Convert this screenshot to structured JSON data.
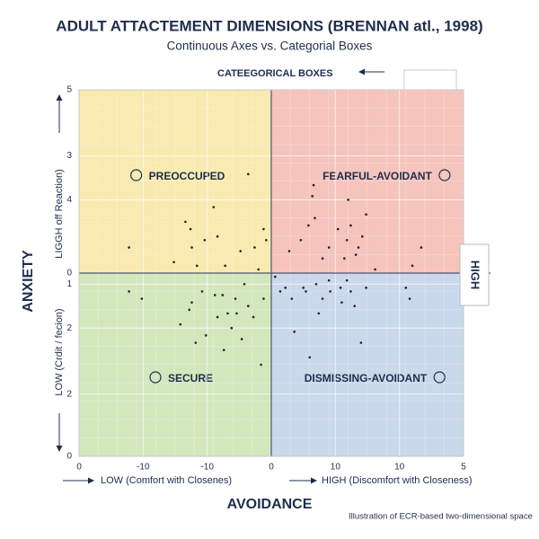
{
  "chart_data": {
    "type": "scatter",
    "title": "ADULT ATTACTEMENT DIMENSIONS (BRENNAN atl., 1998)",
    "subtitle": "Continuous Axes vs. Categorial Boxes",
    "top_label": "CATEEGORICAL BOXES",
    "right_label": "HIGH",
    "y_label": "ANXIETY",
    "y_high_label": "LIGGH off Reaction)",
    "y_low_label": "LOW (Crdit / fecion)",
    "x_label": "AVOIDANCE",
    "x_low_label": "LOW (Comfort with Closenes)",
    "x_high_label": "HIGH (Discomfort with Closeness)",
    "footnote": "Illustration of ECR-based two-dimensional space",
    "quadrants": [
      {
        "label": "PREOCCUPED",
        "color": "#f8eab0"
      },
      {
        "label": "FEARFUL-AVOIDANT",
        "color": "#f5c4bc"
      },
      {
        "label": "SECURE",
        "color": "#d3e7bd"
      },
      {
        "label": "DISMISSING-AVOIDANT",
        "color": "#c9d8ea"
      }
    ],
    "color": "#222222",
    "x": [
      -11.1,
      -7.6,
      -6.7,
      -6.3,
      -6.2,
      -5.8,
      -5.2,
      -4.5,
      -4.2,
      -3.6,
      -2.4,
      -1.8,
      -1.3,
      -1.0,
      -0.6,
      -0.4,
      1.4,
      2.3,
      2.9,
      3.2,
      3.3,
      3.4,
      4.0,
      4.5,
      5.2,
      5.7,
      5.9,
      6.0,
      6.2,
      6.6,
      6.8,
      7.1,
      7.4,
      8.1,
      11.0,
      11.7,
      -11.1,
      -10.1,
      -7.1,
      -6.4,
      -6.2,
      -5.9,
      -5.4,
      -5.1,
      -4.4,
      -4.2,
      -3.8,
      -3.7,
      -3.4,
      -3.1,
      -2.8,
      -2.7,
      -2.3,
      -2.1,
      -1.8,
      -1.4,
      -0.8,
      -0.6,
      0.3,
      0.7,
      1.1,
      1.6,
      1.8,
      2.5,
      2.7,
      3.0,
      3.5,
      3.7,
      4.0,
      4.5,
      4.6,
      5.4,
      5.5,
      5.9,
      6.2,
      6.5,
      7.0,
      7.4,
      10.5,
      10.8
    ],
    "y": [
      0.7,
      0.3,
      1.4,
      1.2,
      0.7,
      0.2,
      0.9,
      1.8,
      1.0,
      0.2,
      0.6,
      2.7,
      0.7,
      0.1,
      1.2,
      0.9,
      0.6,
      0.9,
      1.3,
      2.1,
      2.4,
      1.5,
      0.4,
      0.7,
      1.2,
      0.4,
      0.9,
      2.0,
      1.3,
      0.5,
      0.7,
      1.0,
      1.6,
      0.1,
      0.2,
      0.7,
      -0.5,
      -0.7,
      -1.4,
      -1.0,
      -0.8,
      -1.9,
      -0.5,
      -1.7,
      -0.6,
      -1.2,
      -0.6,
      -2.1,
      -1.1,
      -1.5,
      -0.7,
      -1.1,
      -1.8,
      -0.3,
      -0.9,
      -1.2,
      -2.5,
      -0.7,
      -0.1,
      -0.5,
      -0.4,
      -0.7,
      -1.6,
      -0.4,
      -0.5,
      -2.3,
      -0.3,
      -1.1,
      -0.7,
      -0.2,
      -0.5,
      -0.4,
      -0.8,
      -0.2,
      -0.5,
      -0.9,
      -1.9,
      -0.4,
      -0.4,
      -0.7
    ],
    "xlim": [
      -15,
      15
    ],
    "ylim": [
      -5,
      5
    ],
    "xticks": [
      {
        "value": -15,
        "label": "0"
      },
      -10,
      {
        "value": -5,
        "label": "-10"
      },
      0,
      {
        "value": 5,
        "label": "10"
      },
      10,
      {
        "value": 15,
        "label": "5"
      }
    ],
    "yticks": [
      5,
      {
        "value": 3.2,
        "label": "3"
      },
      {
        "value": 2,
        "label": "4"
      },
      0,
      {
        "value": -0.3,
        "label": "1"
      },
      {
        "value": -1.5,
        "label": "2"
      },
      {
        "value": -3.3,
        "label": "2"
      },
      {
        "value": -5,
        "label": "0"
      }
    ],
    "grid": true
  }
}
